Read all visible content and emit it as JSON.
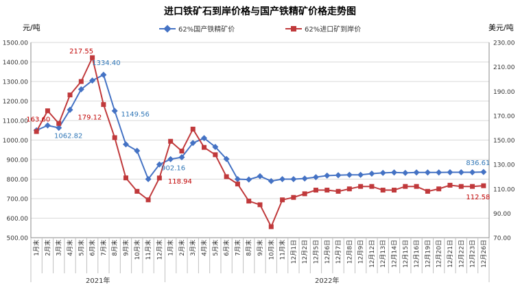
{
  "chart_data": {
    "type": "line",
    "title": "进口铁矿石到岸价格与国产铁精矿价格走势图",
    "y_left_unit": "元/吨",
    "y_right_unit": "美元/吨",
    "y_left_ticks": [
      "500.00",
      "600.00",
      "700.00",
      "800.00",
      "900.00",
      "1000.00",
      "1100.00",
      "1200.00",
      "1300.00",
      "1400.00",
      "1500.00"
    ],
    "y_right_ticks": [
      "70.00",
      "90.00",
      "110.00",
      "130.00",
      "150.00",
      "170.00",
      "190.00",
      "210.00",
      "230.00"
    ],
    "ylim_left": [
      500,
      1500
    ],
    "ylim_right": [
      70,
      230
    ],
    "grid": true,
    "legend_position": "top",
    "categories": [
      "1月末",
      "2月末",
      "3月末",
      "4月末",
      "5月末",
      "6月末",
      "7月末",
      "8月末",
      "9月末",
      "10月末",
      "11月末",
      "12月末",
      "1月末",
      "2月末",
      "3月末",
      "4月末",
      "5月末",
      "6月末",
      "7月末",
      "8月末",
      "9月末",
      "10月末",
      "11月末",
      "12月1日",
      "12月2日",
      "12月5日",
      "12月6日",
      "12月7日",
      "12月8日",
      "12月9日",
      "12月12日",
      "12月13日",
      "12月14日",
      "12月15日",
      "12月16日",
      "12月19日",
      "12月20日",
      "12月21日",
      "12月22日",
      "12月23日",
      "12月26日"
    ],
    "year_groups": [
      {
        "label": "2021年",
        "count": 12
      },
      {
        "label": "2022年",
        "count": 29
      }
    ],
    "series": [
      {
        "name": "62%国产铁精矿价",
        "axis": "left",
        "color": "#4472C4",
        "values": [
          1050,
          1075,
          1062.82,
          1155,
          1260,
          1305,
          1334.4,
          1149.56,
          978,
          945,
          800,
          875,
          902.16,
          912,
          985,
          1010,
          965,
          903,
          800,
          798,
          815,
          790,
          800,
          800,
          803,
          810,
          818,
          820,
          822,
          822,
          828,
          832,
          834,
          832,
          834,
          834,
          834,
          835,
          835,
          835,
          836.61
        ]
      },
      {
        "name": "62%进口矿到岸价",
        "axis": "right",
        "color": "#C0393B",
        "values": [
          157,
          174,
          163.6,
          187,
          198,
          217.55,
          179.12,
          152,
          119,
          108,
          101,
          118.94,
          149,
          141,
          159,
          144,
          138,
          120,
          114,
          100,
          97,
          79,
          101,
          103,
          106,
          109,
          109,
          108,
          110,
          112,
          112,
          109,
          109,
          112,
          112,
          108,
          110,
          113,
          112,
          112,
          112.58
        ]
      }
    ],
    "annotations": [
      {
        "series": 0,
        "index": 2,
        "text": "1062.82"
      },
      {
        "series": 0,
        "index": 6,
        "text": "1334.40"
      },
      {
        "series": 0,
        "index": 7,
        "text": "1149.56"
      },
      {
        "series": 0,
        "index": 12,
        "text": "902.16"
      },
      {
        "series": 0,
        "index": 40,
        "text": "836.61"
      },
      {
        "series": 1,
        "index": 2,
        "text": "163.60"
      },
      {
        "series": 1,
        "index": 5,
        "text": "217.55"
      },
      {
        "series": 1,
        "index": 6,
        "text": "179.12"
      },
      {
        "series": 1,
        "index": 11,
        "text": "118.94"
      },
      {
        "series": 1,
        "index": 40,
        "text": "112.58"
      }
    ]
  }
}
